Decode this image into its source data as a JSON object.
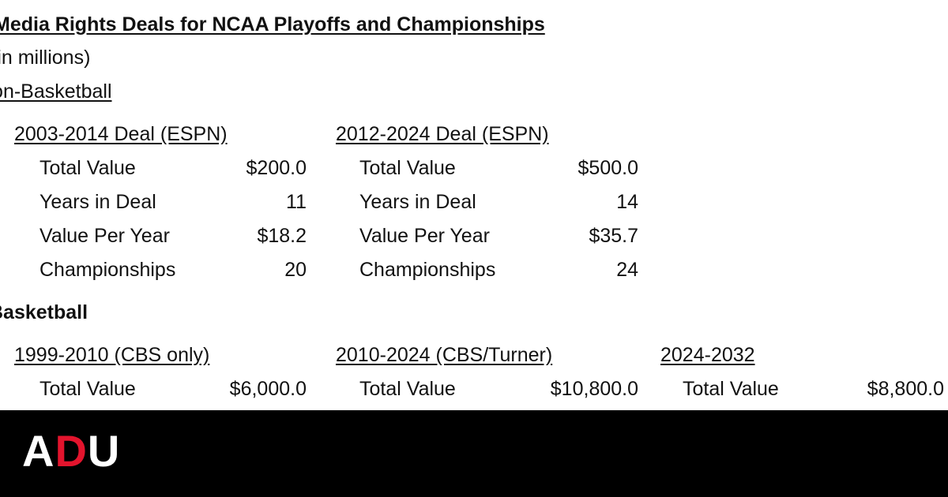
{
  "header": {
    "title": "Media Rights Deals for NCAA Playoffs and Championships",
    "subtitle": "(in millions)"
  },
  "sections": [
    {
      "title": "Non-Basketball",
      "deals": [
        {
          "title": "2003-2014 Deal (ESPN)",
          "rows": [
            [
              "Total Value",
              "$200.0"
            ],
            [
              "Years in Deal",
              "11"
            ],
            [
              "Value Per Year",
              "$18.2"
            ],
            [
              "Championships",
              "20"
            ]
          ]
        },
        {
          "title": "2012-2024 Deal (ESPN)",
          "rows": [
            [
              "Total Value",
              "$500.0"
            ],
            [
              "Years in Deal",
              "14"
            ],
            [
              "Value Per Year",
              "$35.7"
            ],
            [
              "Championships",
              "24"
            ]
          ]
        }
      ]
    },
    {
      "title": "Basketball",
      "deals": [
        {
          "title": "1999-2010 (CBS only)",
          "rows": [
            [
              "Total Value",
              "$6,000.0"
            ]
          ]
        },
        {
          "title": "2010-2024 (CBS/Turner)",
          "rows": [
            [
              "Total Value",
              "$10,800.0"
            ]
          ]
        },
        {
          "title": "2024-2032",
          "rows": [
            [
              "Total Value",
              "$8,800.0"
            ]
          ]
        }
      ]
    }
  ],
  "logo": {
    "parts": [
      "A",
      "D",
      "U"
    ]
  }
}
